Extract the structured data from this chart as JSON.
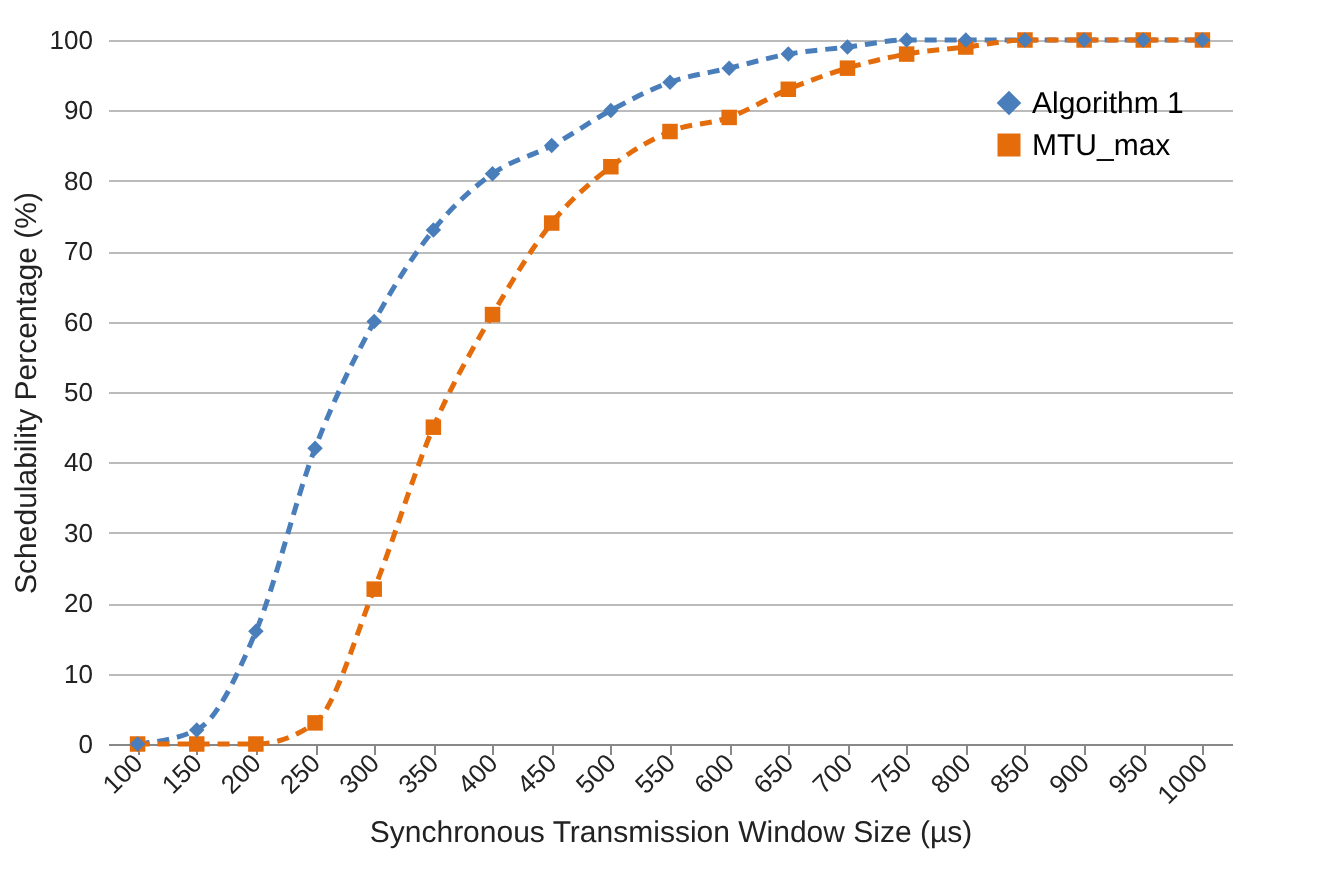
{
  "chart_data": {
    "type": "line",
    "xlabel": "Synchronous Transmission Window Size (µs)",
    "ylabel": "Schedulability Percentage (%)",
    "categories": [
      "100",
      "150",
      "200",
      "250",
      "300",
      "350",
      "400",
      "450",
      "500",
      "550",
      "600",
      "650",
      "700",
      "750",
      "800",
      "850",
      "900",
      "950",
      "1000"
    ],
    "series": [
      {
        "name": "Algorithm 1",
        "color": "#4a7ebb",
        "marker": "diamond",
        "values": [
          0,
          2,
          16,
          42,
          60,
          73,
          81,
          85,
          90,
          94,
          96,
          98,
          99,
          100,
          100,
          100,
          100,
          100,
          100
        ]
      },
      {
        "name": "MTU_max",
        "color": "#e46c0a",
        "marker": "square",
        "values": [
          0,
          0,
          0,
          3,
          22,
          45,
          61,
          74,
          82,
          87,
          89,
          93,
          96,
          98,
          99,
          100,
          100,
          100,
          100
        ]
      }
    ],
    "ylim": [
      0,
      100
    ],
    "yticks": [
      0,
      10,
      20,
      30,
      40,
      50,
      60,
      70,
      80,
      90,
      100
    ],
    "grid": "y",
    "legend": "top right",
    "line_style": "dashed"
  }
}
